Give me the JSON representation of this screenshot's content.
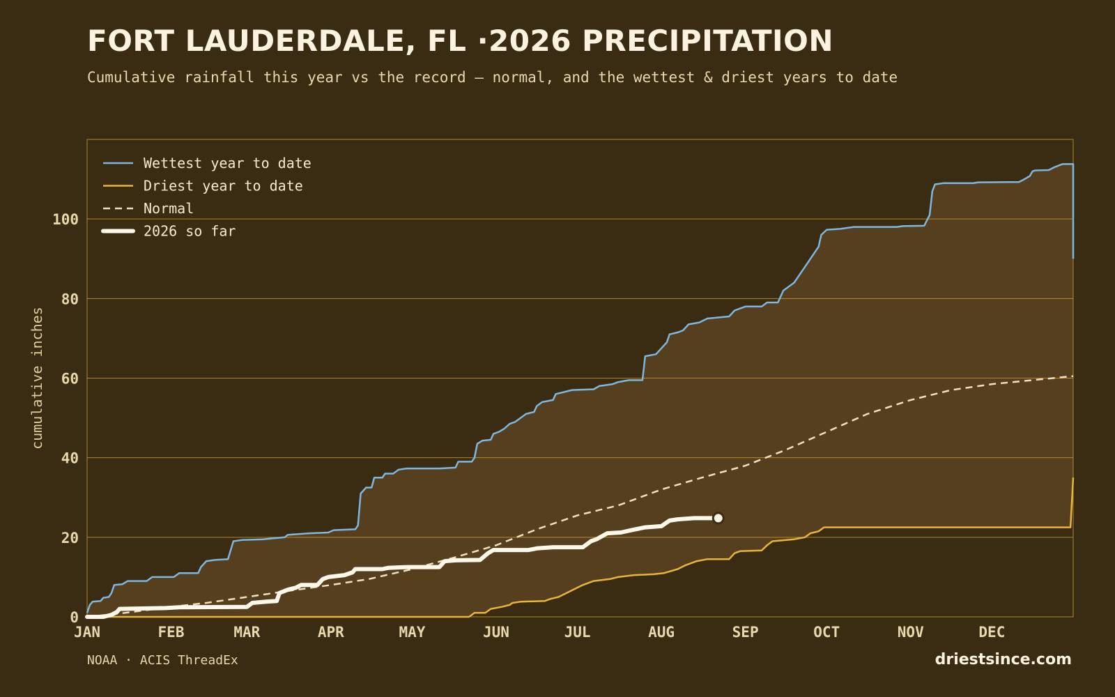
{
  "header": {
    "title": "FORT LAUDERDALE, FL ·2026 PRECIPITATION",
    "subtitle": "Cumulative rainfall this year vs the record — normal, and the wettest & driest years to date"
  },
  "footer": {
    "source": "NOAA · ACIS ThreadEx",
    "brand": "driestsince.com"
  },
  "colors": {
    "background": "#3a2c13",
    "band_fill": "#553f1e",
    "grid": "#c9962e",
    "wettest": "#7fb7e0",
    "driest": "#e8b43c",
    "normal": "#efe1bd",
    "current": "#fff8ea"
  },
  "chart_data": {
    "type": "line",
    "title": "FORT LAUDERDALE, FL ·2026 PRECIPITATION",
    "xlabel": "",
    "ylabel": "cumulative inches",
    "ylim": [
      0,
      120
    ],
    "xlim": [
      1,
      365
    ],
    "x_unit": "day of year",
    "x_ticks": [
      {
        "day": 1,
        "label": "JAN"
      },
      {
        "day": 32,
        "label": "FEB"
      },
      {
        "day": 60,
        "label": "MAR"
      },
      {
        "day": 91,
        "label": "APR"
      },
      {
        "day": 121,
        "label": "MAY"
      },
      {
        "day": 152,
        "label": "JUN"
      },
      {
        "day": 182,
        "label": "JUL"
      },
      {
        "day": 213,
        "label": "AUG"
      },
      {
        "day": 244,
        "label": "SEP"
      },
      {
        "day": 274,
        "label": "OCT"
      },
      {
        "day": 305,
        "label": "NOV"
      },
      {
        "day": 335,
        "label": "DEC"
      }
    ],
    "y_ticks": [
      0,
      20,
      40,
      60,
      80,
      100
    ],
    "grid": true,
    "legend_position": "top-left",
    "series": [
      {
        "name": "Wettest year to date",
        "style": "line",
        "color_key": "wettest",
        "points": [
          [
            1,
            1
          ],
          [
            2,
            3
          ],
          [
            3,
            3.8
          ],
          [
            6,
            4
          ],
          [
            7,
            4.8
          ],
          [
            9,
            5
          ],
          [
            10,
            6
          ],
          [
            11,
            8
          ],
          [
            14,
            8.2
          ],
          [
            16,
            9
          ],
          [
            23,
            9
          ],
          [
            25,
            10
          ],
          [
            33,
            10
          ],
          [
            35,
            11
          ],
          [
            42,
            11
          ],
          [
            43,
            12.5
          ],
          [
            45,
            14
          ],
          [
            48,
            14.3
          ],
          [
            53,
            14.5
          ],
          [
            55,
            19
          ],
          [
            58,
            19.3
          ],
          [
            66,
            19.5
          ],
          [
            74,
            20
          ],
          [
            75,
            20.6
          ],
          [
            83,
            21
          ],
          [
            90,
            21.2
          ],
          [
            92,
            21.8
          ],
          [
            100,
            22
          ],
          [
            101,
            23
          ],
          [
            102,
            31
          ],
          [
            104,
            32.5
          ],
          [
            106,
            32.5
          ],
          [
            107,
            35
          ],
          [
            110,
            35
          ],
          [
            111,
            36
          ],
          [
            114,
            36
          ],
          [
            116,
            37
          ],
          [
            119,
            37.3
          ],
          [
            131,
            37.3
          ],
          [
            137,
            37.5
          ],
          [
            138,
            39
          ],
          [
            143,
            39
          ],
          [
            144,
            40
          ],
          [
            145,
            43.5
          ],
          [
            147,
            44.3
          ],
          [
            150,
            44.5
          ],
          [
            151,
            46
          ],
          [
            153,
            46.5
          ],
          [
            155,
            47.3
          ],
          [
            157,
            48.5
          ],
          [
            159,
            49
          ],
          [
            161,
            50
          ],
          [
            163,
            51
          ],
          [
            166,
            51.5
          ],
          [
            167,
            53
          ],
          [
            169,
            54
          ],
          [
            173,
            54.5
          ],
          [
            174,
            56
          ],
          [
            177,
            56.5
          ],
          [
            180,
            57
          ],
          [
            188,
            57.2
          ],
          [
            190,
            58
          ],
          [
            195,
            58.5
          ],
          [
            197,
            59
          ],
          [
            201,
            59.5
          ],
          [
            206,
            59.5
          ],
          [
            207,
            65.5
          ],
          [
            211,
            66
          ],
          [
            213,
            67.5
          ],
          [
            215,
            69
          ],
          [
            216,
            71
          ],
          [
            219,
            71.5
          ],
          [
            221,
            72
          ],
          [
            223,
            73.5
          ],
          [
            227,
            74
          ],
          [
            230,
            75
          ],
          [
            238,
            75.5
          ],
          [
            240,
            77
          ],
          [
            242,
            77.5
          ],
          [
            244,
            78
          ],
          [
            250,
            78
          ],
          [
            252,
            79
          ],
          [
            256,
            79
          ],
          [
            258,
            82
          ],
          [
            260,
            83
          ],
          [
            262,
            84
          ],
          [
            264,
            86
          ],
          [
            266,
            88
          ],
          [
            268,
            90
          ],
          [
            270,
            92
          ],
          [
            271,
            93
          ],
          [
            272,
            96
          ],
          [
            274,
            97.3
          ],
          [
            279,
            97.5
          ],
          [
            284,
            98
          ],
          [
            300,
            98
          ],
          [
            302,
            98.2
          ],
          [
            310,
            98.3
          ],
          [
            312,
            101
          ],
          [
            313,
            107
          ],
          [
            314,
            108.7
          ],
          [
            317,
            109
          ],
          [
            328,
            109
          ],
          [
            330,
            109.2
          ],
          [
            345,
            109.3
          ],
          [
            347,
            110
          ],
          [
            349,
            110.8
          ],
          [
            350,
            112
          ],
          [
            351,
            112.2
          ],
          [
            356,
            112.3
          ],
          [
            358,
            113
          ],
          [
            361,
            113.8
          ],
          [
            365,
            113.8
          ],
          [
            365,
            90
          ]
        ]
      },
      {
        "name": "Driest year to date",
        "style": "line",
        "color_key": "driest",
        "points": [
          [
            1,
            0
          ],
          [
            142,
            0
          ],
          [
            144,
            1
          ],
          [
            148,
            1
          ],
          [
            150,
            2
          ],
          [
            154,
            2.5
          ],
          [
            157,
            3
          ],
          [
            158,
            3.5
          ],
          [
            161,
            3.8
          ],
          [
            170,
            4
          ],
          [
            172,
            4.5
          ],
          [
            175,
            5
          ],
          [
            178,
            6
          ],
          [
            181,
            7
          ],
          [
            184,
            8
          ],
          [
            188,
            9
          ],
          [
            194,
            9.5
          ],
          [
            197,
            10
          ],
          [
            203,
            10.5
          ],
          [
            210,
            10.7
          ],
          [
            214,
            11
          ],
          [
            219,
            12
          ],
          [
            222,
            13
          ],
          [
            226,
            14
          ],
          [
            230,
            14.5
          ],
          [
            238,
            14.5
          ],
          [
            240,
            16
          ],
          [
            242,
            16.5
          ],
          [
            250,
            16.7
          ],
          [
            252,
            18
          ],
          [
            254,
            19
          ],
          [
            262,
            19.5
          ],
          [
            266,
            20
          ],
          [
            268,
            21
          ],
          [
            271,
            21.5
          ],
          [
            273,
            22.5
          ],
          [
            280,
            22.5
          ],
          [
            300,
            22.5
          ],
          [
            364,
            22.5
          ],
          [
            365,
            35
          ]
        ]
      },
      {
        "name": "Normal",
        "style": "dashed",
        "color_key": "normal",
        "points": [
          [
            1,
            0
          ],
          [
            15,
            1
          ],
          [
            32,
            2.5
          ],
          [
            45,
            3.5
          ],
          [
            60,
            5
          ],
          [
            75,
            6.5
          ],
          [
            91,
            8
          ],
          [
            105,
            9.5
          ],
          [
            121,
            12
          ],
          [
            137,
            15
          ],
          [
            152,
            18
          ],
          [
            167,
            22
          ],
          [
            182,
            25.5
          ],
          [
            197,
            28
          ],
          [
            213,
            32
          ],
          [
            228,
            35
          ],
          [
            244,
            38
          ],
          [
            259,
            42
          ],
          [
            274,
            46.5
          ],
          [
            289,
            51
          ],
          [
            305,
            54.5
          ],
          [
            320,
            57
          ],
          [
            335,
            58.5
          ],
          [
            350,
            59.5
          ],
          [
            365,
            60.5
          ]
        ]
      },
      {
        "name": "2026 so far",
        "style": "thick",
        "color_key": "current",
        "end_marker": true,
        "points": [
          [
            1,
            0
          ],
          [
            7,
            0
          ],
          [
            10,
            0.5
          ],
          [
            12,
            1.2
          ],
          [
            13,
            2
          ],
          [
            30,
            2.2
          ],
          [
            35,
            2.4
          ],
          [
            60,
            2.5
          ],
          [
            62,
            3.5
          ],
          [
            67,
            3.8
          ],
          [
            71,
            4
          ],
          [
            72,
            6
          ],
          [
            75,
            6.8
          ],
          [
            78,
            7.3
          ],
          [
            80,
            8
          ],
          [
            86,
            8
          ],
          [
            88,
            9.5
          ],
          [
            90,
            10
          ],
          [
            96,
            10.5
          ],
          [
            99,
            11.2
          ],
          [
            100,
            12
          ],
          [
            110,
            12
          ],
          [
            112,
            12.3
          ],
          [
            119,
            12.5
          ],
          [
            131,
            12.5
          ],
          [
            133,
            14
          ],
          [
            137,
            14.2
          ],
          [
            146,
            14.3
          ],
          [
            149,
            16
          ],
          [
            151,
            16.8
          ],
          [
            164,
            16.8
          ],
          [
            167,
            17.2
          ],
          [
            173,
            17.5
          ],
          [
            184,
            17.5
          ],
          [
            187,
            19
          ],
          [
            189,
            19.5
          ],
          [
            193,
            21
          ],
          [
            198,
            21.2
          ],
          [
            202,
            21.8
          ],
          [
            207,
            22.5
          ],
          [
            213,
            22.8
          ],
          [
            216,
            24.2
          ],
          [
            219,
            24.5
          ],
          [
            225,
            24.8
          ],
          [
            234,
            24.8
          ]
        ]
      }
    ]
  }
}
